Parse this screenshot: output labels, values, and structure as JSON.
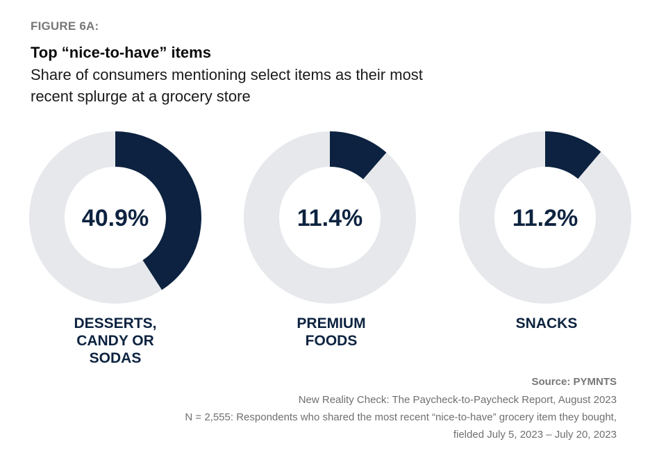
{
  "figure_label": "FIGURE 6A:",
  "chart_data": {
    "type": "pie",
    "variant": "donut",
    "title": "Top “nice-to-have” items",
    "subtitle": "Share of consumers mentioning select items as their most recent splurge at a grocery store",
    "unit": "%",
    "categories": [
      "DESSERTS, CANDY OR SODAS",
      "PREMIUM FOODS",
      "SNACKS"
    ],
    "values": [
      40.9,
      11.4,
      11.2
    ],
    "value_labels": [
      "40.9%",
      "11.4%",
      "11.2%"
    ],
    "category_lines": [
      [
        "DESSERTS,",
        "CANDY OR",
        "SODAS"
      ],
      [
        "PREMIUM",
        "FOODS"
      ],
      [
        "SNACKS"
      ]
    ],
    "colors": {
      "filled": "#0c2240",
      "remainder": "#e6e8eb",
      "value_text": "#0d2340"
    }
  },
  "source": {
    "label": "Source: PYMNTS",
    "report": "New Reality Check: The Paycheck-to-Paycheck Report, August 2023",
    "sample_line1": "N = 2,555: Respondents who shared the most recent “nice-to-have” grocery item they bought,",
    "sample_line2": "fielded July 5, 2023 – July 20, 2023"
  }
}
